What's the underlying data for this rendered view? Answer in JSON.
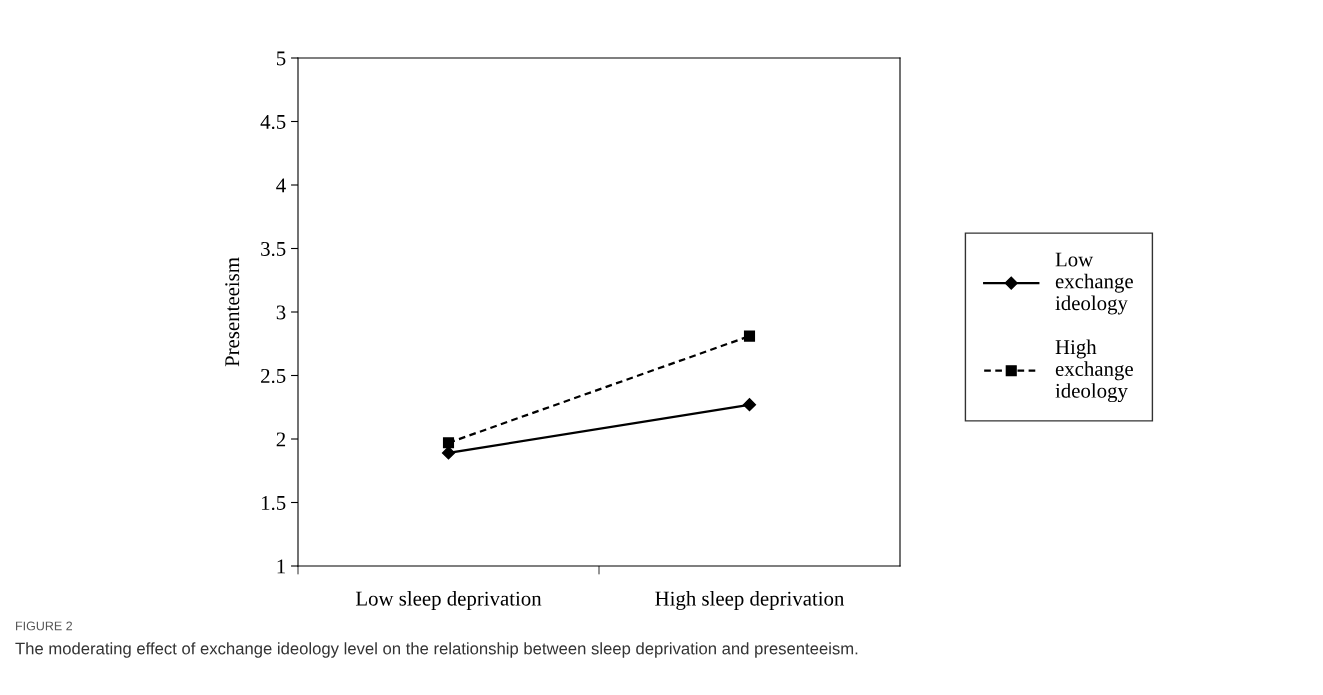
{
  "chart_data": {
    "type": "line",
    "ylabel": "Presenteeism",
    "categories": [
      "Low sleep deprivation",
      "High sleep deprivation"
    ],
    "series": [
      {
        "name": "Low exchange ideology",
        "color": "#000000",
        "values": [
          1.89,
          2.27
        ],
        "marker": "diamond",
        "line_style": "solid"
      },
      {
        "name": "High exchange ideology",
        "color": "#000000",
        "values": [
          1.97,
          2.81
        ],
        "marker": "square",
        "line_style": "dashed"
      }
    ],
    "ylim": [
      1,
      5
    ],
    "yticks": [
      1,
      1.5,
      2,
      2.5,
      3,
      3.5,
      4,
      4.5,
      5
    ],
    "grid": false,
    "legend": "right",
    "annotations": [
      "FIGURE 2",
      "The moderating effect of exchange ideology level on the relationship between sleep deprivation and presenteeism."
    ]
  }
}
